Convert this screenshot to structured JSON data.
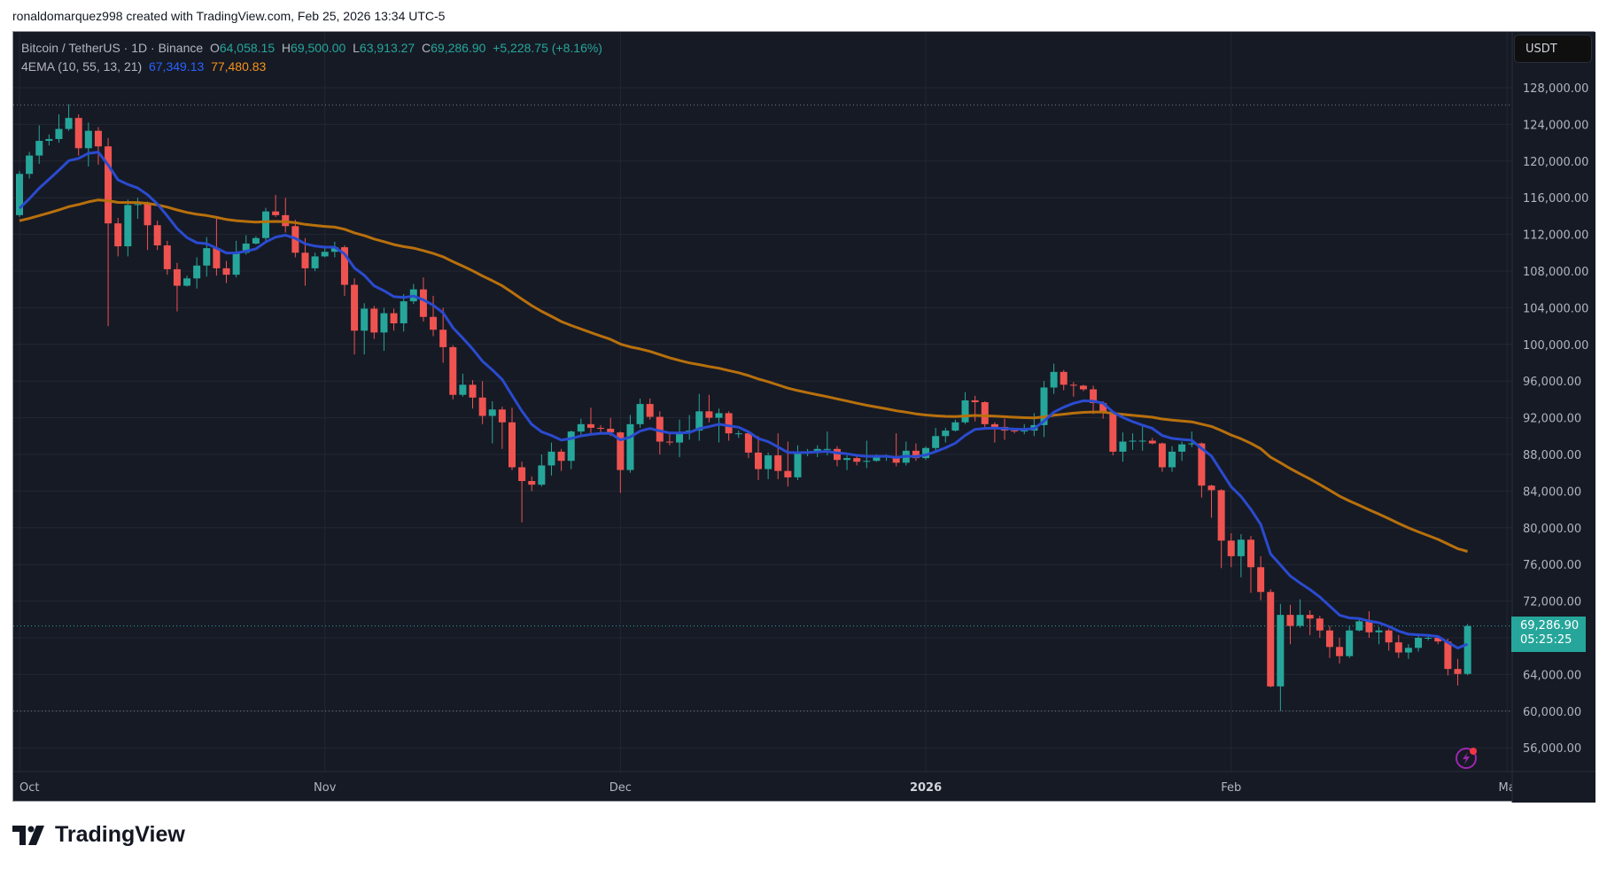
{
  "caption": "ronaldomarquez998 created with TradingView.com, Feb 25, 2026 13:34 UTC-5",
  "legend": {
    "symbol": "Bitcoin / TetherUS · 1D · Binance",
    "o_label": "O",
    "o": "64,058.15",
    "h_label": "H",
    "h": "69,500.00",
    "l_label": "L",
    "l": "63,913.27",
    "c_label": "C",
    "c": "69,286.90",
    "change": "+5,228.75 (+8.16%)",
    "indicator": "4EMA (10, 55, 13, 21)",
    "ema_fast": "67,349.13",
    "ema_slow": "77,480.83"
  },
  "currency_button": "USDT",
  "current_price": {
    "price": "69,286.90",
    "countdown": "05:25:25"
  },
  "brand": "TradingView",
  "colors": {
    "background": "#161a25",
    "up": "#26a69a",
    "down": "#ef5350",
    "ema_fast": "#2a4bd0",
    "ema_slow": "#b8700c",
    "grid": "#232733"
  },
  "icons": [
    "tradingview-logo-icon",
    "lightning-alert-icon"
  ],
  "chart_data": {
    "type": "candlestick",
    "price_ticks": [
      "128,000.00",
      "124,000.00",
      "120,000.00",
      "116,000.00",
      "112,000.00",
      "108,000.00",
      "104,000.00",
      "100,000.00",
      "96,000.00",
      "92,000.00",
      "88,000.00",
      "84,000.00",
      "80,000.00",
      "76,000.00",
      "72,000.00",
      "64,000.00",
      "60,000.00",
      "56,000.00"
    ],
    "price_tick_values": [
      128000,
      124000,
      120000,
      116000,
      112000,
      108000,
      104000,
      100000,
      96000,
      92000,
      88000,
      84000,
      80000,
      76000,
      72000,
      64000,
      60000,
      56000
    ],
    "time_ticks": [
      {
        "label": "Oct",
        "date": "2025-10-01",
        "bold": false
      },
      {
        "label": "Nov",
        "date": "2025-11-01",
        "bold": false
      },
      {
        "label": "Dec",
        "date": "2025-12-01",
        "bold": false
      },
      {
        "label": "2026",
        "date": "2026-01-01",
        "bold": true
      },
      {
        "label": "Feb",
        "date": "2026-02-01",
        "bold": false
      },
      {
        "label": "Ma",
        "date": "2026-03-01",
        "bold": false
      }
    ],
    "ylim": [
      54000,
      131000
    ],
    "reference_lines": [
      126100,
      60000
    ],
    "ema_lengths": [
      10,
      55
    ],
    "candles": [
      [
        "2025-10-01",
        114100,
        118900,
        113900,
        118600
      ],
      [
        "2025-10-02",
        118600,
        121000,
        118100,
        120600
      ],
      [
        "2025-10-03",
        120600,
        123900,
        119700,
        122200
      ],
      [
        "2025-10-04",
        122200,
        122900,
        121700,
        122400
      ],
      [
        "2025-10-05",
        122400,
        125100,
        122000,
        123500
      ],
      [
        "2025-10-06",
        123500,
        126200,
        123300,
        124700
      ],
      [
        "2025-10-07",
        124700,
        125100,
        120600,
        121400
      ],
      [
        "2025-10-08",
        121400,
        124200,
        119400,
        123300
      ],
      [
        "2025-10-09",
        123300,
        123700,
        119600,
        121600
      ],
      [
        "2025-10-10",
        121600,
        122500,
        102000,
        113200
      ],
      [
        "2025-10-11",
        113200,
        113800,
        109600,
        110700
      ],
      [
        "2025-10-12",
        110700,
        115800,
        109600,
        115200
      ],
      [
        "2025-10-13",
        115200,
        116000,
        113700,
        115300
      ],
      [
        "2025-10-14",
        115300,
        115600,
        110300,
        113000
      ],
      [
        "2025-10-15",
        113000,
        113500,
        110300,
        110800
      ],
      [
        "2025-10-16",
        110800,
        111300,
        107600,
        108200
      ],
      [
        "2025-10-17",
        108200,
        108900,
        103600,
        106400
      ],
      [
        "2025-10-18",
        106400,
        107500,
        106300,
        107200
      ],
      [
        "2025-10-19",
        107200,
        109500,
        106100,
        108600
      ],
      [
        "2025-10-20",
        108600,
        111700,
        107400,
        110500
      ],
      [
        "2025-10-21",
        110500,
        114000,
        107500,
        108300
      ],
      [
        "2025-10-22",
        108300,
        109100,
        106700,
        107600
      ],
      [
        "2025-10-23",
        107600,
        111300,
        107300,
        110000
      ],
      [
        "2025-10-24",
        110000,
        111900,
        109800,
        111000
      ],
      [
        "2025-10-25",
        111000,
        111800,
        110900,
        111600
      ],
      [
        "2025-10-26",
        111600,
        114900,
        111300,
        114500
      ],
      [
        "2025-10-27",
        114500,
        116300,
        113900,
        114100
      ],
      [
        "2025-10-28",
        114100,
        116000,
        112200,
        112900
      ],
      [
        "2025-10-29",
        112900,
        113600,
        109500,
        110000
      ],
      [
        "2025-10-30",
        110000,
        111600,
        106400,
        108300
      ],
      [
        "2025-10-31",
        108300,
        110000,
        108000,
        109600
      ],
      [
        "2025-11-01",
        109600,
        110600,
        109500,
        110100
      ],
      [
        "2025-11-02",
        110100,
        111200,
        109500,
        110600
      ],
      [
        "2025-11-03",
        110600,
        110800,
        105300,
        106500
      ],
      [
        "2025-11-04",
        106500,
        107200,
        98900,
        101500
      ],
      [
        "2025-11-05",
        101500,
        104500,
        98900,
        103900
      ],
      [
        "2025-11-06",
        103900,
        104200,
        100600,
        101300
      ],
      [
        "2025-11-07",
        101300,
        104000,
        99300,
        103400
      ],
      [
        "2025-11-08",
        103400,
        103900,
        101500,
        102300
      ],
      [
        "2025-11-09",
        102300,
        105500,
        101400,
        104700
      ],
      [
        "2025-11-10",
        104700,
        106600,
        104400,
        106000
      ],
      [
        "2025-11-11",
        106000,
        107300,
        102500,
        103000
      ],
      [
        "2025-11-12",
        103000,
        105300,
        100900,
        101600
      ],
      [
        "2025-11-13",
        101600,
        104000,
        98000,
        99700
      ],
      [
        "2025-11-14",
        99700,
        99900,
        94000,
        94500
      ],
      [
        "2025-11-15",
        94500,
        96800,
        94300,
        95600
      ],
      [
        "2025-11-16",
        95600,
        96100,
        93000,
        94200
      ],
      [
        "2025-11-17",
        94200,
        96000,
        91300,
        92200
      ],
      [
        "2025-11-18",
        92200,
        93800,
        89200,
        92900
      ],
      [
        "2025-11-19",
        92900,
        93200,
        88600,
        91500
      ],
      [
        "2025-11-20",
        91500,
        93100,
        86300,
        86600
      ],
      [
        "2025-11-21",
        86600,
        87200,
        80600,
        85100
      ],
      [
        "2025-11-22",
        85100,
        85600,
        84000,
        84700
      ],
      [
        "2025-11-23",
        84700,
        88000,
        84500,
        86800
      ],
      [
        "2025-11-24",
        86800,
        89300,
        85700,
        88300
      ],
      [
        "2025-11-25",
        88300,
        88600,
        86200,
        87300
      ],
      [
        "2025-11-26",
        87300,
        90600,
        86400,
        90500
      ],
      [
        "2025-11-27",
        90500,
        91900,
        90100,
        91300
      ],
      [
        "2025-11-28",
        91300,
        93100,
        90300,
        90900
      ],
      [
        "2025-11-29",
        90900,
        91200,
        90400,
        90800
      ],
      [
        "2025-11-30",
        90800,
        92000,
        90000,
        90400
      ],
      [
        "2025-12-01",
        90400,
        90500,
        83800,
        86300
      ],
      [
        "2025-12-02",
        86300,
        92300,
        86000,
        91300
      ],
      [
        "2025-12-03",
        91300,
        94100,
        90900,
        93500
      ],
      [
        "2025-12-04",
        93500,
        94100,
        91800,
        92100
      ],
      [
        "2025-12-05",
        92100,
        92700,
        88000,
        89400
      ],
      [
        "2025-12-06",
        89400,
        90300,
        89000,
        89300
      ],
      [
        "2025-12-07",
        89300,
        91800,
        87700,
        90400
      ],
      [
        "2025-12-08",
        90400,
        92300,
        89600,
        90600
      ],
      [
        "2025-12-09",
        90600,
        94600,
        89500,
        92700
      ],
      [
        "2025-12-10",
        92700,
        94500,
        91500,
        92000
      ],
      [
        "2025-12-11",
        92000,
        93000,
        89300,
        92500
      ],
      [
        "2025-12-12",
        92500,
        92700,
        89500,
        90300
      ],
      [
        "2025-12-13",
        90300,
        90600,
        89800,
        90300
      ],
      [
        "2025-12-14",
        90300,
        90500,
        87600,
        88200
      ],
      [
        "2025-12-15",
        88200,
        90000,
        85200,
        86400
      ],
      [
        "2025-12-16",
        86400,
        88200,
        85300,
        87900
      ],
      [
        "2025-12-17",
        87900,
        90300,
        85300,
        86200
      ],
      [
        "2025-12-18",
        86200,
        89400,
        84500,
        85500
      ],
      [
        "2025-12-19",
        85500,
        89000,
        85200,
        88100
      ],
      [
        "2025-12-20",
        88100,
        88600,
        87800,
        88300
      ],
      [
        "2025-12-21",
        88300,
        89000,
        87700,
        88600
      ],
      [
        "2025-12-22",
        88600,
        90500,
        87900,
        88600
      ],
      [
        "2025-12-23",
        88600,
        88900,
        86700,
        87400
      ],
      [
        "2025-12-24",
        87400,
        87900,
        86300,
        87600
      ],
      [
        "2025-12-25",
        87600,
        88000,
        86800,
        87200
      ],
      [
        "2025-12-26",
        87200,
        89500,
        86500,
        87300
      ],
      [
        "2025-12-27",
        87300,
        88000,
        87200,
        87800
      ],
      [
        "2025-12-28",
        87800,
        88000,
        87300,
        87800
      ],
      [
        "2025-12-29",
        87800,
        90300,
        86700,
        87100
      ],
      [
        "2025-12-30",
        87100,
        89400,
        86800,
        88400
      ],
      [
        "2025-12-31",
        88400,
        89200,
        87300,
        87600
      ],
      [
        "2026-01-01",
        87600,
        88900,
        87400,
        88700
      ],
      [
        "2026-01-02",
        88700,
        90900,
        88300,
        90000
      ],
      [
        "2026-01-03",
        90000,
        90900,
        89300,
        90600
      ],
      [
        "2026-01-04",
        90600,
        91800,
        90500,
        91500
      ],
      [
        "2026-01-05",
        91500,
        94800,
        91300,
        93900
      ],
      [
        "2026-01-06",
        93900,
        94400,
        91600,
        93700
      ],
      [
        "2026-01-07",
        93700,
        93800,
        90700,
        91300
      ],
      [
        "2026-01-08",
        91300,
        91500,
        89300,
        91000
      ],
      [
        "2026-01-09",
        91000,
        91900,
        89600,
        90600
      ],
      [
        "2026-01-10",
        90600,
        90800,
        90300,
        90500
      ],
      [
        "2026-01-11",
        90500,
        91300,
        90200,
        90600
      ],
      [
        "2026-01-12",
        90600,
        92500,
        90000,
        91200
      ],
      [
        "2026-01-13",
        91200,
        96000,
        89900,
        95300
      ],
      [
        "2026-01-14",
        95300,
        97900,
        94600,
        97000
      ],
      [
        "2026-01-15",
        97000,
        97200,
        95000,
        95600
      ],
      [
        "2026-01-16",
        95600,
        95900,
        94300,
        95500
      ],
      [
        "2026-01-17",
        95500,
        95600,
        94900,
        95100
      ],
      [
        "2026-01-18",
        95100,
        95500,
        92400,
        93600
      ],
      [
        "2026-01-19",
        93600,
        93800,
        91900,
        92600
      ],
      [
        "2026-01-20",
        92600,
        92700,
        87900,
        88300
      ],
      [
        "2026-01-21",
        88300,
        90400,
        87200,
        89400
      ],
      [
        "2026-01-22",
        89400,
        90300,
        88500,
        89500
      ],
      [
        "2026-01-23",
        89500,
        91100,
        88400,
        89500
      ],
      [
        "2026-01-24",
        89500,
        89800,
        89100,
        89200
      ],
      [
        "2026-01-25",
        89200,
        89300,
        86100,
        86600
      ],
      [
        "2026-01-26",
        86600,
        88900,
        86100,
        88300
      ],
      [
        "2026-01-27",
        88300,
        89400,
        87300,
        89100
      ],
      [
        "2026-01-28",
        89100,
        90500,
        88800,
        89200
      ],
      [
        "2026-01-29",
        89200,
        89300,
        83300,
        84600
      ],
      [
        "2026-01-30",
        84600,
        84700,
        81100,
        84100
      ],
      [
        "2026-01-31",
        84100,
        84200,
        75600,
        78600
      ],
      [
        "2026-02-01",
        78600,
        79400,
        75700,
        76900
      ],
      [
        "2026-02-02",
        76900,
        79300,
        74600,
        78700
      ],
      [
        "2026-02-03",
        78700,
        79100,
        72900,
        75700
      ],
      [
        "2026-02-04",
        75700,
        76900,
        72100,
        73000
      ],
      [
        "2026-02-05",
        73000,
        73300,
        62600,
        62700
      ],
      [
        "2026-02-06",
        62700,
        71700,
        60000,
        70500
      ],
      [
        "2026-02-07",
        70500,
        71600,
        67300,
        69300
      ],
      [
        "2026-02-08",
        69300,
        72200,
        69100,
        70500
      ],
      [
        "2026-02-09",
        70500,
        71000,
        68300,
        70100
      ],
      [
        "2026-02-10",
        70100,
        70400,
        68000,
        68800
      ],
      [
        "2026-02-11",
        68800,
        69300,
        65800,
        67000
      ],
      [
        "2026-02-12",
        67000,
        68000,
        65200,
        66000
      ],
      [
        "2026-02-13",
        66000,
        69300,
        65800,
        68800
      ],
      [
        "2026-02-14",
        68800,
        70100,
        68700,
        69800
      ],
      [
        "2026-02-15",
        69800,
        70900,
        68000,
        68600
      ],
      [
        "2026-02-16",
        68600,
        69200,
        67300,
        68800
      ],
      [
        "2026-02-17",
        68800,
        69000,
        66600,
        67500
      ],
      [
        "2026-02-18",
        67500,
        68300,
        65800,
        66400
      ],
      [
        "2026-02-19",
        66400,
        67300,
        65700,
        66900
      ],
      [
        "2026-02-20",
        66900,
        68200,
        66500,
        68000
      ],
      [
        "2026-02-21",
        68000,
        68400,
        67700,
        68000
      ],
      [
        "2026-02-22",
        68000,
        68200,
        67300,
        67600
      ],
      [
        "2026-02-23",
        67600,
        67900,
        63900,
        64600
      ],
      [
        "2026-02-24",
        64600,
        65700,
        62800,
        64058.15
      ],
      [
        "2026-02-25",
        64058.15,
        69500,
        63913.27,
        69286.9
      ]
    ]
  }
}
